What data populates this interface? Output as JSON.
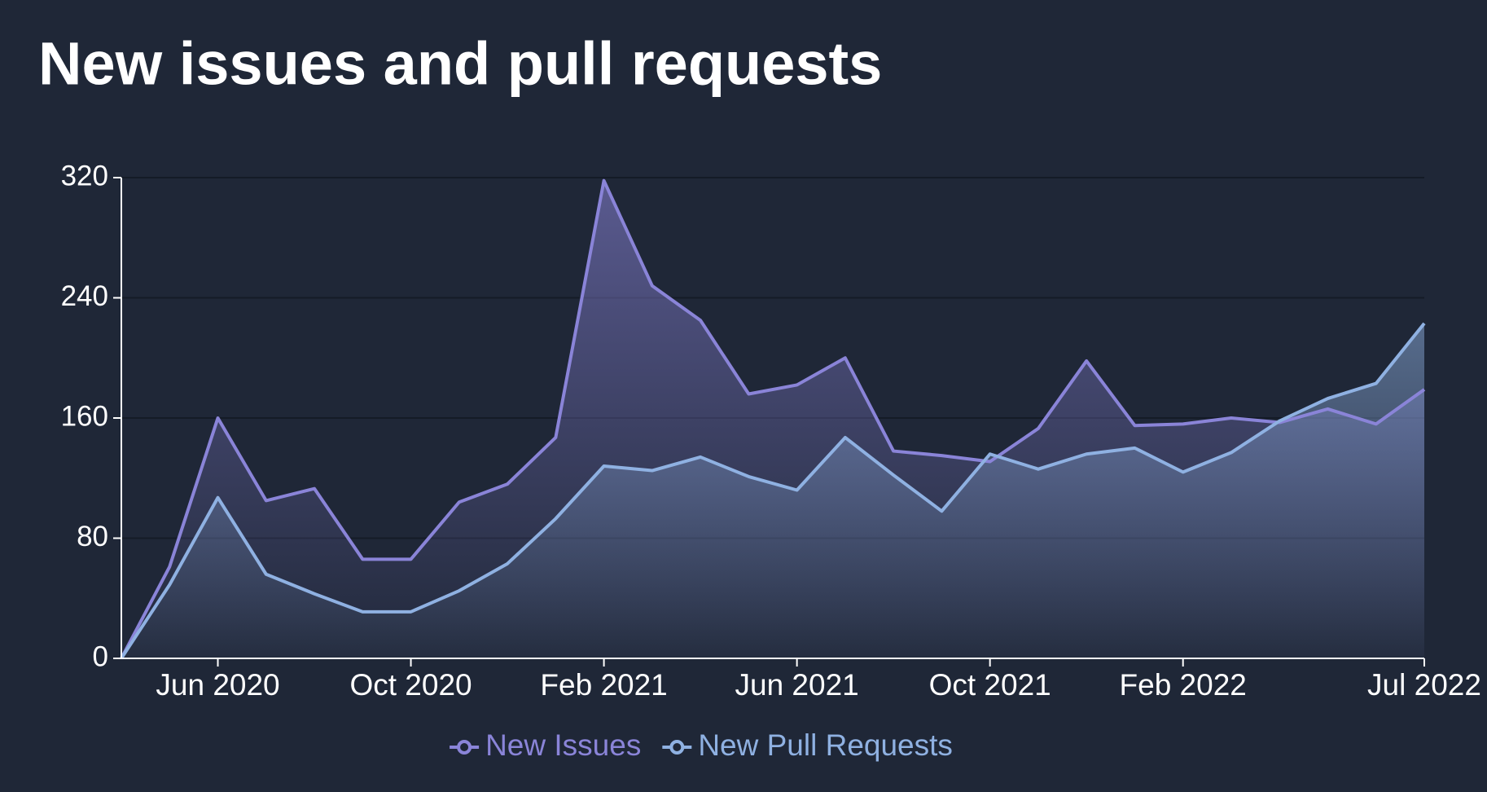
{
  "chart_data": {
    "type": "area",
    "title": "New issues and pull requests",
    "x": [
      "Apr 2020",
      "May 2020",
      "Jun 2020",
      "Jul 2020",
      "Aug 2020",
      "Sep 2020",
      "Oct 2020",
      "Nov 2020",
      "Dec 2020",
      "Jan 2021",
      "Feb 2021",
      "Mar 2021",
      "Apr 2021",
      "May 2021",
      "Jun 2021",
      "Jul 2021",
      "Aug 2021",
      "Sep 2021",
      "Oct 2021",
      "Nov 2021",
      "Dec 2021",
      "Jan 2022",
      "Feb 2022",
      "Mar 2022",
      "Apr 2022",
      "May 2022",
      "Jun 2022",
      "Jul 2022"
    ],
    "xticks": [
      "Jun 2020",
      "Oct 2020",
      "Feb 2021",
      "Jun 2021",
      "Oct 2021",
      "Feb 2022",
      "Jul 2022"
    ],
    "series": [
      {
        "name": "New Issues",
        "color": "#8a84d8",
        "values": [
          0,
          61,
          160,
          105,
          113,
          66,
          66,
          104,
          116,
          147,
          318,
          248,
          225,
          176,
          182,
          200,
          138,
          135,
          131,
          153,
          198,
          155,
          156,
          160,
          157,
          166,
          156,
          179
        ]
      },
      {
        "name": "New Pull Requests",
        "color": "#8fb1e2",
        "values": [
          0,
          49,
          107,
          56,
          43,
          31,
          31,
          45,
          63,
          93,
          128,
          125,
          134,
          121,
          112,
          147,
          122,
          98,
          136,
          126,
          136,
          140,
          124,
          137,
          158,
          173,
          183,
          223
        ]
      }
    ],
    "ylim": [
      0,
      320
    ],
    "yticks": [
      0,
      80,
      160,
      240,
      320
    ],
    "grid": true,
    "legend": "bottom"
  }
}
